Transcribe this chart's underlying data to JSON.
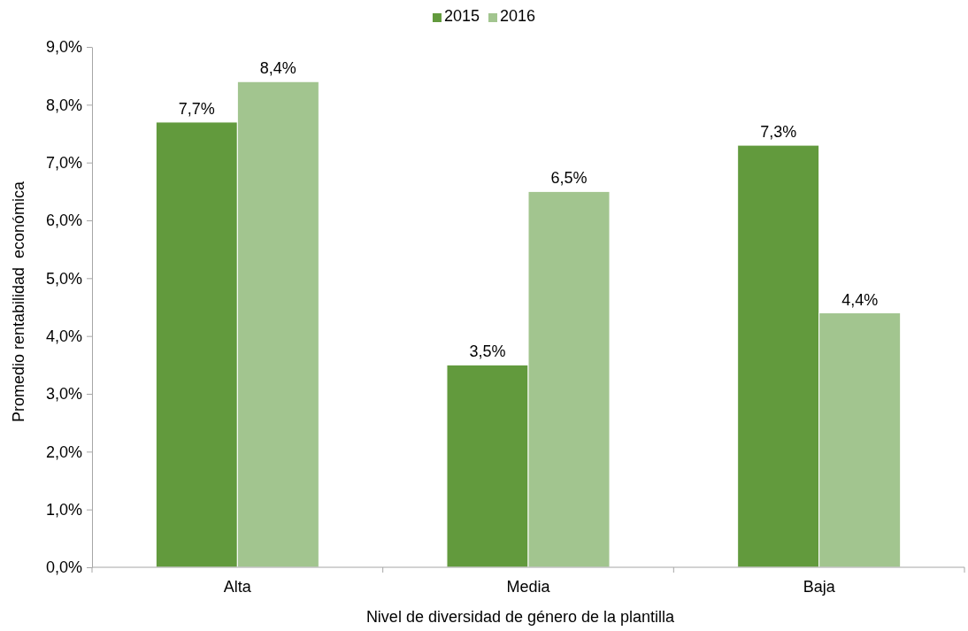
{
  "chart_data": {
    "type": "bar",
    "xlabel": "Nivel de diversidad de género de la plantilla",
    "ylabel": "Promedio rentabilidad  económica",
    "categories": [
      "Alta",
      "Media",
      "Baja"
    ],
    "series": [
      {
        "name": "2015",
        "color": "#629a3d",
        "values": [
          7.7,
          3.5,
          7.3
        ],
        "value_labels": [
          "7,7%",
          "3,5%",
          "7,3%"
        ]
      },
      {
        "name": "2016",
        "color": "#a2c58f",
        "values": [
          8.4,
          6.5,
          4.4
        ],
        "value_labels": [
          "8,4%",
          "6,5%",
          "4,4%"
        ]
      }
    ],
    "ylim": [
      0,
      9
    ],
    "yticks": [
      {
        "value": 0,
        "label": "0,0%"
      },
      {
        "value": 1,
        "label": "1,0%"
      },
      {
        "value": 2,
        "label": "2,0%"
      },
      {
        "value": 3,
        "label": "3,0%"
      },
      {
        "value": 4,
        "label": "4,0%"
      },
      {
        "value": 5,
        "label": "5,0%"
      },
      {
        "value": 6,
        "label": "6,0%"
      },
      {
        "value": 7,
        "label": "7,0%"
      },
      {
        "value": 8,
        "label": "8,0%"
      },
      {
        "value": 9,
        "label": "9,0%"
      }
    ],
    "grid": false,
    "legend": "top"
  }
}
